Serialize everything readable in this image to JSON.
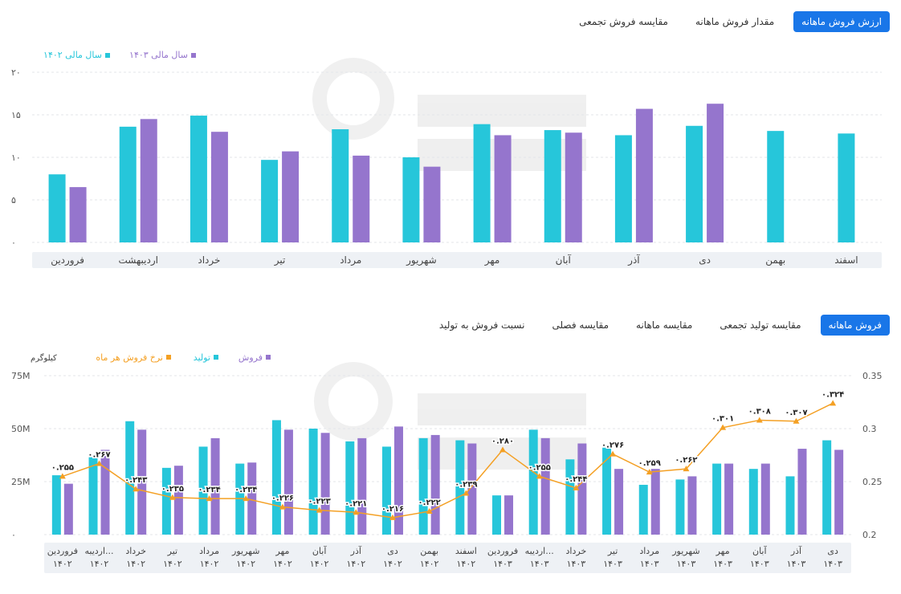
{
  "top_section": {
    "tabs": [
      "ارزش فروش ماهانه",
      "مقدار فروش ماهانه",
      "مقایسه فروش تجمعی"
    ],
    "active_tab": 0
  },
  "bottom_section": {
    "tabs": [
      "فروش ماهانه",
      "مقایسه تولید تجمعی",
      "مقایسه ماهانه",
      "مقایسه فصلی",
      "نسبت فروش به تولید"
    ],
    "active_tab": 0
  },
  "colors": {
    "teal": "#26c6da",
    "purple": "#9575cd",
    "orange": "#f4a024",
    "accent": "#1976e8",
    "axis_band": "#eef1f5"
  },
  "chart_data": [
    {
      "type": "bar",
      "categories": [
        "فروردین",
        "اردیبهشت",
        "خرداد",
        "تیر",
        "مرداد",
        "شهریور",
        "مهر",
        "آبان",
        "آذر",
        "دی",
        "بهمن",
        "اسفند"
      ],
      "series": [
        {
          "name": "سال مالی ۱۴۰۲",
          "color": "#26c6da",
          "values": [
            8.0,
            13.6,
            14.9,
            9.7,
            13.3,
            10.0,
            13.9,
            13.2,
            12.6,
            13.7,
            13.1,
            12.8
          ]
        },
        {
          "name": "سال مالی ۱۴۰۳",
          "color": "#9575cd",
          "values": [
            6.5,
            14.5,
            13.0,
            10.7,
            10.2,
            8.9,
            12.6,
            12.9,
            15.7,
            16.3,
            null,
            null
          ]
        }
      ],
      "yticks": [
        "۰",
        "۵",
        "۱۰",
        "۱۵",
        "۲۰"
      ],
      "ylim": [
        0,
        20
      ],
      "grid": true,
      "legend": "top-left"
    },
    {
      "type": "bar",
      "categories": [
        "فروردین ۱۴۰۲",
        "اردیبه... ۱۴۰۲",
        "خرداد ۱۴۰۲",
        "تیر ۱۴۰۲",
        "مرداد ۱۴۰۲",
        "شهریور ۱۴۰۲",
        "مهر ۱۴۰۲",
        "آبان ۱۴۰۲",
        "آذر ۱۴۰۲",
        "دی ۱۴۰۲",
        "بهمن ۱۴۰۲",
        "اسفند ۱۴۰۲",
        "فروردین ۱۴۰۳",
        "اردیبه... ۱۴۰۳",
        "خرداد ۱۴۰۳",
        "تیر ۱۴۰۳",
        "مرداد ۱۴۰۳",
        "شهریور ۱۴۰۳",
        "مهر ۱۴۰۳",
        "آبان ۱۴۰۳",
        "آذر ۱۴۰۳",
        "دی ۱۴۰۳"
      ],
      "series": [
        {
          "name": "تولید",
          "color": "#26c6da",
          "values": [
            28,
            36.5,
            53.5,
            31.5,
            41.5,
            33.5,
            54,
            50,
            44,
            41.5,
            45.5,
            44.5,
            18.5,
            49.5,
            35.5,
            41,
            23.5,
            26,
            33.5,
            31,
            27.5,
            44.5
          ]
        },
        {
          "name": "فروش",
          "color": "#9575cd",
          "values": [
            24,
            40,
            49.5,
            32.5,
            45.5,
            34,
            49.5,
            48,
            45.5,
            51,
            47,
            43,
            18.5,
            45.5,
            43,
            31,
            31,
            27.5,
            33.5,
            33.5,
            40.5,
            40
          ]
        },
        {
          "name": "نرخ فروش هر ماه",
          "color": "#f4a024",
          "axis": "right",
          "values": [
            0.255,
            0.267,
            0.243,
            0.235,
            0.234,
            0.234,
            0.226,
            0.223,
            0.221,
            0.216,
            0.222,
            0.239,
            0.28,
            0.255,
            0.244,
            0.276,
            0.259,
            0.262,
            0.301,
            0.308,
            0.307,
            0.324
          ],
          "labels": [
            "۰.۲۵۵",
            "۰.۲۶۷",
            "۰.۲۴۳",
            "۰.۲۳۵",
            "۰.۲۳۴",
            "۰.۲۳۴",
            "۰.۲۲۶",
            "۰.۲۲۳",
            "۰.۲۲۱",
            "۰.۲۱۶",
            "۰.۲۲۲",
            "۰.۲۳۹",
            "۰.۲۸۰",
            "۰.۲۵۵",
            "۰.۲۴۴",
            "۰.۲۷۶",
            "۰.۲۵۹",
            "۰.۲۶۲",
            "۰.۳۰۱",
            "۰.۳۰۸",
            "۰.۳۰۷",
            "۰.۳۲۴"
          ]
        }
      ],
      "y_unit": "کیلوگرم",
      "yticks": [
        "۰",
        "25M",
        "50M",
        "75M"
      ],
      "ylim": [
        0,
        75
      ],
      "y2ticks": [
        "0.2",
        "0.25",
        "0.3",
        "0.35"
      ],
      "y2lim": [
        0.2,
        0.35
      ],
      "grid": true,
      "legend": "top-left"
    }
  ]
}
